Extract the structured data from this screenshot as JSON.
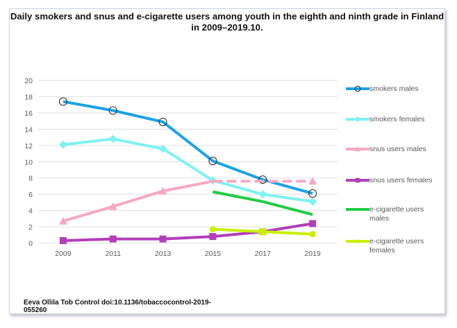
{
  "title": "Daily smokers and snus and e-cigarette users among youth in the eighth and ninth grade in Finland in 2009–2019.10.",
  "source": "Eeva Ollila Tob Control doi:10.1136/tobaccocontrol-2019-055260",
  "chart_data": {
    "type": "line",
    "title": "Daily smokers and snus and e-cigarette users among youth in the eighth and ninth grade in Finland in 2009–2019.10.",
    "xlabel": "",
    "ylabel": "",
    "categories": [
      "2009",
      "2011",
      "2013",
      "2015",
      "2017",
      "2019"
    ],
    "ylim": [
      0,
      20
    ],
    "yticks": [
      0,
      2,
      4,
      6,
      8,
      10,
      12,
      14,
      16,
      18,
      20
    ],
    "grid": true,
    "legend_position": "right",
    "series": [
      {
        "name": "smokers males",
        "color": "#1aa3e6",
        "marker": "open-circle",
        "values": [
          17.4,
          16.3,
          14.9,
          10.1,
          7.8,
          6.1
        ]
      },
      {
        "name": "smokers females",
        "color": "#7ff2f2",
        "marker": "diamond",
        "values": [
          12.1,
          12.8,
          11.6,
          7.7,
          6.0,
          5.1
        ]
      },
      {
        "name": "snus users males",
        "color": "#f7a8c0",
        "marker": "triangle",
        "values": [
          2.7,
          4.5,
          6.4,
          7.6,
          7.6,
          7.6
        ]
      },
      {
        "name": "snus users females",
        "color": "#b23eb8",
        "marker": "square",
        "values": [
          0.3,
          0.5,
          0.5,
          0.8,
          1.4,
          2.4
        ]
      },
      {
        "name": "e-cigarette users males",
        "color": "#1fcc44",
        "marker": "none",
        "values": [
          null,
          null,
          null,
          6.3,
          5.1,
          3.5
        ]
      },
      {
        "name": "e-cigarette users females",
        "color": "#c8f000",
        "marker": "circle",
        "values": [
          null,
          null,
          null,
          1.7,
          1.4,
          1.1
        ]
      }
    ]
  }
}
